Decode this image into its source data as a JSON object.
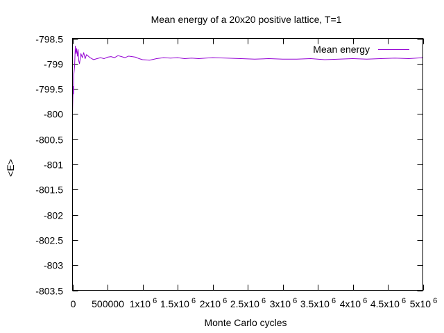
{
  "chart_data": {
    "type": "line",
    "title": "Mean energy of a 20x20 positive lattice, T=1",
    "xlabel": "Monte Carlo cycles",
    "ylabel": "<E>",
    "xlim": [
      0,
      5000000
    ],
    "ylim": [
      -803.5,
      -798.5
    ],
    "yticks": [
      -798.5,
      -799,
      -799.5,
      -800,
      -800.5,
      -801,
      -801.5,
      -802,
      -802.5,
      -803,
      -803.5
    ],
    "ytick_labels": [
      "-798.5",
      "-799",
      "-799.5",
      "-800",
      "-800.5",
      "-801",
      "-801.5",
      "-802",
      "-802.5",
      "-803",
      "-803.5"
    ],
    "xticks": [
      0,
      500000,
      1000000,
      1500000,
      2000000,
      2500000,
      3000000,
      3500000,
      4000000,
      4500000,
      5000000
    ],
    "xtick_labels": [
      {
        "base": "0",
        "exp": ""
      },
      {
        "base": "500000",
        "exp": ""
      },
      {
        "base": "1x10",
        "exp": "6"
      },
      {
        "base": "1.5x10",
        "exp": "6"
      },
      {
        "base": "2x10",
        "exp": "6"
      },
      {
        "base": "2.5x10",
        "exp": "6"
      },
      {
        "base": "3x10",
        "exp": "6"
      },
      {
        "base": "3.5x10",
        "exp": "6"
      },
      {
        "base": "4x10",
        "exp": "6"
      },
      {
        "base": "4.5x10",
        "exp": "6"
      },
      {
        "base": "5x10",
        "exp": "6"
      }
    ],
    "grid": false,
    "legend": "top-right",
    "series": [
      {
        "name": "Mean energy",
        "color": "#9400d3",
        "x": [
          0,
          5000,
          10000,
          15000,
          20000,
          30000,
          40000,
          50000,
          60000,
          70000,
          80000,
          90000,
          100000,
          120000,
          140000,
          160000,
          180000,
          200000,
          250000,
          300000,
          350000,
          400000,
          450000,
          500000,
          550000,
          600000,
          650000,
          700000,
          750000,
          800000,
          850000,
          900000,
          950000,
          1000000,
          1100000,
          1200000,
          1300000,
          1400000,
          1500000,
          1600000,
          1700000,
          1800000,
          1900000,
          2000000,
          2200000,
          2400000,
          2600000,
          2800000,
          3000000,
          3200000,
          3400000,
          3600000,
          3800000,
          4000000,
          4200000,
          4400000,
          4600000,
          4800000,
          5000000
        ],
        "y": [
          -800.0,
          -799.7,
          -799.45,
          -799.6,
          -799.2,
          -799.05,
          -798.65,
          -798.8,
          -798.7,
          -798.85,
          -798.72,
          -798.95,
          -799.0,
          -798.8,
          -798.88,
          -798.78,
          -798.9,
          -798.82,
          -798.88,
          -798.92,
          -798.9,
          -798.88,
          -798.9,
          -798.87,
          -798.86,
          -798.88,
          -798.84,
          -798.86,
          -798.88,
          -798.85,
          -798.86,
          -798.87,
          -798.9,
          -798.92,
          -798.93,
          -798.9,
          -798.88,
          -798.89,
          -798.88,
          -798.9,
          -798.89,
          -798.9,
          -798.89,
          -798.88,
          -798.89,
          -798.9,
          -798.91,
          -798.9,
          -798.91,
          -798.91,
          -798.9,
          -798.92,
          -798.91,
          -798.9,
          -798.91,
          -798.9,
          -798.89,
          -798.9,
          -798.88
        ]
      }
    ]
  }
}
